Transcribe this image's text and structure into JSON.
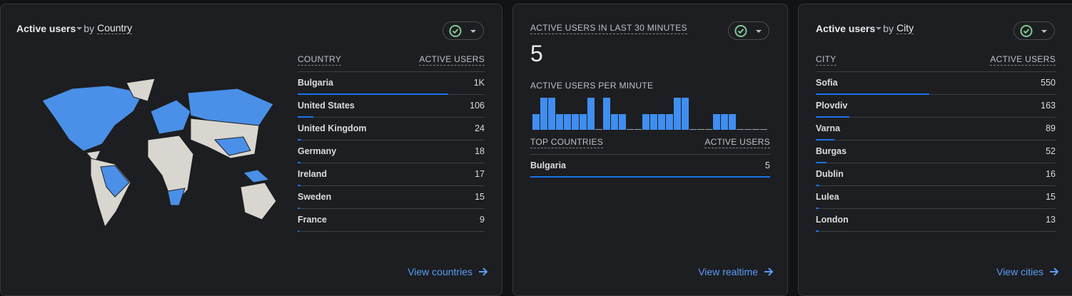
{
  "country_card": {
    "title": "Active users",
    "title_by": "by",
    "title_dimension": "Country",
    "columns": [
      "COUNTRY",
      "ACTIVE USERS"
    ],
    "rows": [
      {
        "name": "Bulgaria",
        "value": 1000,
        "label": "1K"
      },
      {
        "name": "United States",
        "value": 106
      },
      {
        "name": "United Kingdom",
        "value": 24
      },
      {
        "name": "Germany",
        "value": 18
      },
      {
        "name": "Ireland",
        "value": 17
      },
      {
        "name": "Sweden",
        "value": 15
      },
      {
        "name": "France",
        "value": 9
      }
    ],
    "link": "View countries"
  },
  "realtime_card": {
    "title": "ACTIVE USERS IN LAST 30 MINUTES",
    "total": 5,
    "per_minute_title": "ACTIVE USERS PER MINUTE",
    "per_minute": [
      1,
      2,
      2,
      1,
      1,
      1,
      1,
      2,
      0,
      2,
      1,
      1,
      0,
      0,
      1,
      1,
      1,
      1,
      2,
      2,
      0,
      0,
      0,
      1,
      1,
      1,
      0,
      0,
      0,
      0
    ],
    "columns": [
      "TOP COUNTRIES",
      "ACTIVE USERS"
    ],
    "rows": [
      {
        "name": "Bulgaria",
        "value": 5
      }
    ],
    "link": "View realtime"
  },
  "city_card": {
    "title": "Active users",
    "title_by": "by",
    "title_dimension": "City",
    "columns": [
      "CITY",
      "ACTIVE USERS"
    ],
    "rows": [
      {
        "name": "Sofia",
        "value": 550
      },
      {
        "name": "Plovdiv",
        "value": 163
      },
      {
        "name": "Varna",
        "value": 89
      },
      {
        "name": "Burgas",
        "value": 52
      },
      {
        "name": "Dublin",
        "value": 16
      },
      {
        "name": "Lulea",
        "value": 15
      },
      {
        "name": "London",
        "value": 13
      }
    ],
    "link": "View cities"
  }
}
